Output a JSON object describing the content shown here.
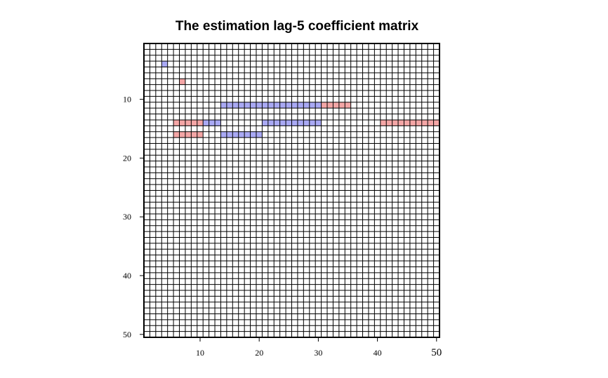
{
  "chart_data": {
    "type": "heatmap",
    "title": "The estimation lag-5 coefficient matrix",
    "n_rows": 50,
    "n_cols": 50,
    "x_ticks": [
      10,
      20,
      30,
      40,
      50
    ],
    "y_ticks": [
      10,
      20,
      30,
      40,
      50
    ],
    "colors": {
      "positive": "#f4a6a6",
      "negative": "#a9a9f4",
      "grid": "#000000"
    },
    "cells": [
      {
        "row": 4,
        "col": 4,
        "sign": "negative"
      },
      {
        "row": 7,
        "col": 7,
        "sign": "positive"
      },
      {
        "row": 11,
        "col": 14,
        "sign": "negative"
      },
      {
        "row": 11,
        "col": 15,
        "sign": "negative"
      },
      {
        "row": 11,
        "col": 16,
        "sign": "negative"
      },
      {
        "row": 11,
        "col": 17,
        "sign": "negative"
      },
      {
        "row": 11,
        "col": 18,
        "sign": "negative"
      },
      {
        "row": 11,
        "col": 19,
        "sign": "negative"
      },
      {
        "row": 11,
        "col": 20,
        "sign": "negative"
      },
      {
        "row": 11,
        "col": 21,
        "sign": "negative"
      },
      {
        "row": 11,
        "col": 22,
        "sign": "negative"
      },
      {
        "row": 11,
        "col": 23,
        "sign": "negative"
      },
      {
        "row": 11,
        "col": 24,
        "sign": "negative"
      },
      {
        "row": 11,
        "col": 25,
        "sign": "negative"
      },
      {
        "row": 11,
        "col": 26,
        "sign": "negative"
      },
      {
        "row": 11,
        "col": 27,
        "sign": "negative"
      },
      {
        "row": 11,
        "col": 28,
        "sign": "negative"
      },
      {
        "row": 11,
        "col": 29,
        "sign": "negative"
      },
      {
        "row": 11,
        "col": 30,
        "sign": "negative"
      },
      {
        "row": 11,
        "col": 31,
        "sign": "positive"
      },
      {
        "row": 11,
        "col": 32,
        "sign": "positive"
      },
      {
        "row": 11,
        "col": 33,
        "sign": "positive"
      },
      {
        "row": 11,
        "col": 34,
        "sign": "positive"
      },
      {
        "row": 11,
        "col": 35,
        "sign": "positive"
      },
      {
        "row": 14,
        "col": 6,
        "sign": "positive"
      },
      {
        "row": 14,
        "col": 7,
        "sign": "positive"
      },
      {
        "row": 14,
        "col": 8,
        "sign": "positive"
      },
      {
        "row": 14,
        "col": 9,
        "sign": "positive"
      },
      {
        "row": 14,
        "col": 10,
        "sign": "positive"
      },
      {
        "row": 14,
        "col": 11,
        "sign": "negative"
      },
      {
        "row": 14,
        "col": 12,
        "sign": "negative"
      },
      {
        "row": 14,
        "col": 13,
        "sign": "negative"
      },
      {
        "row": 14,
        "col": 21,
        "sign": "negative"
      },
      {
        "row": 14,
        "col": 22,
        "sign": "negative"
      },
      {
        "row": 14,
        "col": 23,
        "sign": "negative"
      },
      {
        "row": 14,
        "col": 24,
        "sign": "negative"
      },
      {
        "row": 14,
        "col": 25,
        "sign": "negative"
      },
      {
        "row": 14,
        "col": 26,
        "sign": "negative"
      },
      {
        "row": 14,
        "col": 27,
        "sign": "negative"
      },
      {
        "row": 14,
        "col": 28,
        "sign": "negative"
      },
      {
        "row": 14,
        "col": 29,
        "sign": "negative"
      },
      {
        "row": 14,
        "col": 30,
        "sign": "negative"
      },
      {
        "row": 14,
        "col": 41,
        "sign": "positive"
      },
      {
        "row": 14,
        "col": 42,
        "sign": "positive"
      },
      {
        "row": 14,
        "col": 43,
        "sign": "positive"
      },
      {
        "row": 14,
        "col": 44,
        "sign": "positive"
      },
      {
        "row": 14,
        "col": 45,
        "sign": "positive"
      },
      {
        "row": 14,
        "col": 46,
        "sign": "positive"
      },
      {
        "row": 14,
        "col": 47,
        "sign": "positive"
      },
      {
        "row": 14,
        "col": 48,
        "sign": "positive"
      },
      {
        "row": 14,
        "col": 49,
        "sign": "positive"
      },
      {
        "row": 14,
        "col": 50,
        "sign": "positive"
      },
      {
        "row": 16,
        "col": 6,
        "sign": "positive"
      },
      {
        "row": 16,
        "col": 7,
        "sign": "positive"
      },
      {
        "row": 16,
        "col": 8,
        "sign": "positive"
      },
      {
        "row": 16,
        "col": 9,
        "sign": "positive"
      },
      {
        "row": 16,
        "col": 10,
        "sign": "positive"
      },
      {
        "row": 16,
        "col": 14,
        "sign": "negative"
      },
      {
        "row": 16,
        "col": 15,
        "sign": "negative"
      },
      {
        "row": 16,
        "col": 16,
        "sign": "negative"
      },
      {
        "row": 16,
        "col": 17,
        "sign": "negative"
      },
      {
        "row": 16,
        "col": 18,
        "sign": "negative"
      },
      {
        "row": 16,
        "col": 19,
        "sign": "negative"
      },
      {
        "row": 16,
        "col": 20,
        "sign": "negative"
      }
    ]
  }
}
